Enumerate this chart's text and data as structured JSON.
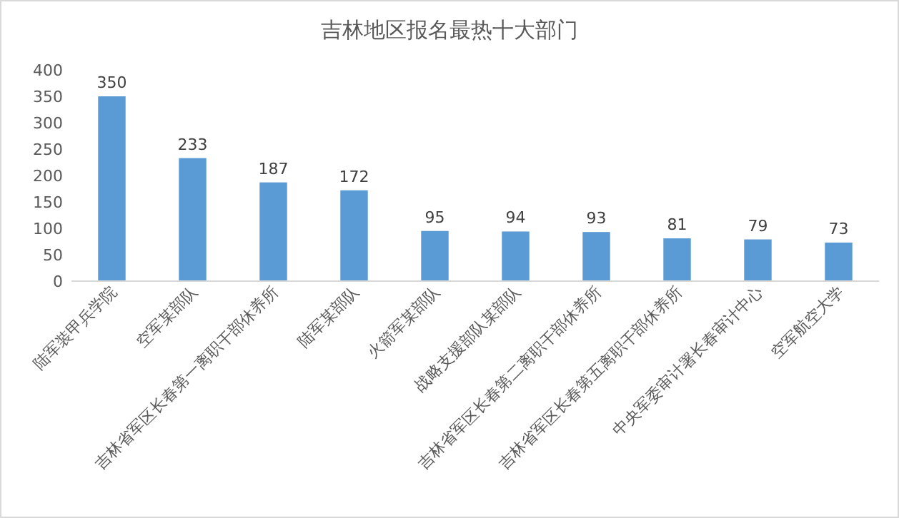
{
  "chart_data": {
    "type": "bar",
    "title": "吉林地区报名最热十大部门",
    "categories": [
      "陆军装甲兵学院",
      "空军某部队",
      "吉林省军区长春第一离职干部休养所",
      "陆军某部队",
      "火箭军某部队",
      "战略支援部队某部队",
      "吉林省军区长春第二离职干部休养所",
      "吉林省军区长春第五离职干部休养所",
      "中央军委审计署长春审计中心",
      "空军航空大学"
    ],
    "values": [
      350,
      233,
      187,
      172,
      95,
      94,
      93,
      81,
      79,
      73
    ],
    "color": "#5b9bd5",
    "ylim": [
      0,
      400
    ],
    "yticks": [
      0,
      50,
      100,
      150,
      200,
      250,
      300,
      350,
      400
    ],
    "grid": false,
    "data_labels": true
  }
}
